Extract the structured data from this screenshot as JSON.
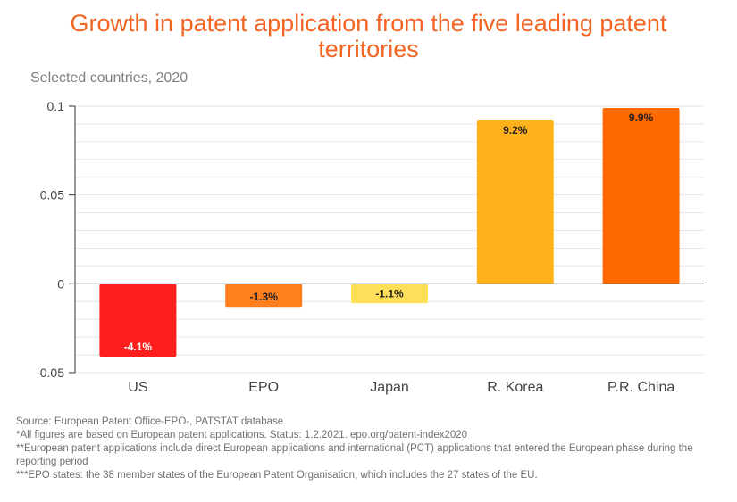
{
  "chart_data": {
    "type": "bar",
    "title": "Growth in patent application from the five leading patent territories",
    "subtitle": "Selected countries, 2020",
    "xlabel": "",
    "ylabel": "",
    "categories": [
      "US",
      "EPO",
      "Japan",
      "R. Korea",
      "P.R. China"
    ],
    "values": [
      -0.041,
      -0.013,
      -0.011,
      0.092,
      0.099
    ],
    "data_labels": [
      "-4.1%",
      "-1.3%",
      "-1.1%",
      "9.2%",
      "9.9%"
    ],
    "colors": [
      "#ff1e1e",
      "#ff7f1f",
      "#ffdf5a",
      "#ffb21c",
      "#ff6a00"
    ],
    "label_colors": [
      "#ffffff",
      "#222222",
      "#222222",
      "#222222",
      "#222222"
    ],
    "ylim": [
      -0.05,
      0.1
    ],
    "yticks": [
      -0.05,
      0,
      0.05,
      0.1
    ],
    "ytick_labels": [
      "-0.05",
      "0",
      "0.05",
      "0.1"
    ],
    "grid": true,
    "legend": "none"
  },
  "footnotes": [
    "Source: European Patent Office-EPO-, PATSTAT database",
    "*All figures are based on European patent applications. Status: 1.2.2021. epo.org/patent-index2020",
    "**European patent applications include direct European applications and international (PCT) applications that entered the European phase during the reporting period",
    "***EPO states: the 38 member states of the European Patent Organisation, which includes the 27 states of the EU."
  ]
}
